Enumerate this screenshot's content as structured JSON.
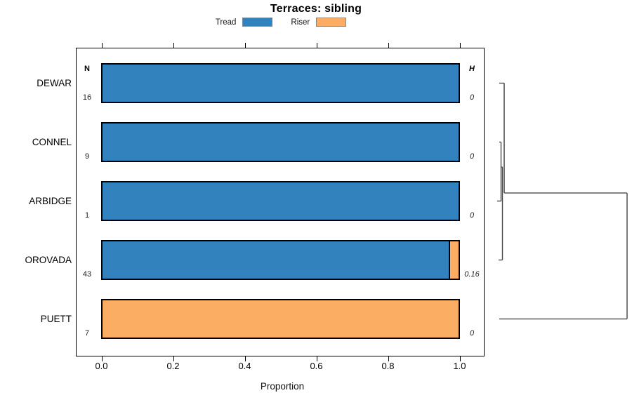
{
  "title": "Terraces: sibling",
  "legend": [
    {
      "label": "Tread",
      "color": "#3182BD"
    },
    {
      "label": "Riser",
      "color": "#FBAD63"
    }
  ],
  "table": {
    "n_header": "N",
    "h_header": "H"
  },
  "x_axis": {
    "label": "Proportion",
    "tick_labels": [
      "0.0",
      "0.2",
      "0.4",
      "0.6",
      "0.8",
      "1.0"
    ]
  },
  "chart_data": {
    "type": "bar",
    "orientation": "horizontal",
    "stacked": true,
    "title": "Terraces: sibling",
    "xlabel": "Proportion",
    "xlim": [
      0,
      1.0
    ],
    "x_ticks": [
      0,
      0.2,
      0.4,
      0.6,
      0.8,
      1.0
    ],
    "grid": false,
    "legend_position": "top",
    "categories": [
      "DEWAR",
      "CONNEL",
      "ARBIDGE",
      "OROVADA",
      "PUETT"
    ],
    "n_values": [
      "16",
      "9",
      "1",
      "43",
      "7"
    ],
    "h_values": [
      "0",
      "0",
      "0",
      "0.16",
      "0"
    ],
    "series": [
      {
        "name": "Tread",
        "color": "#3182BD",
        "values": [
          1.0,
          1.0,
          1.0,
          0.973,
          0.0
        ]
      },
      {
        "name": "Riser",
        "color": "#FBAD63",
        "values": [
          0.0,
          0.0,
          0.0,
          0.027,
          1.0
        ]
      }
    ],
    "right_dendrogram": {
      "note": "cluster tree joining DEWAR+CONNEL+ARBIDGE+OROVADA at near-zero heights, then PUETT at a large height"
    }
  }
}
